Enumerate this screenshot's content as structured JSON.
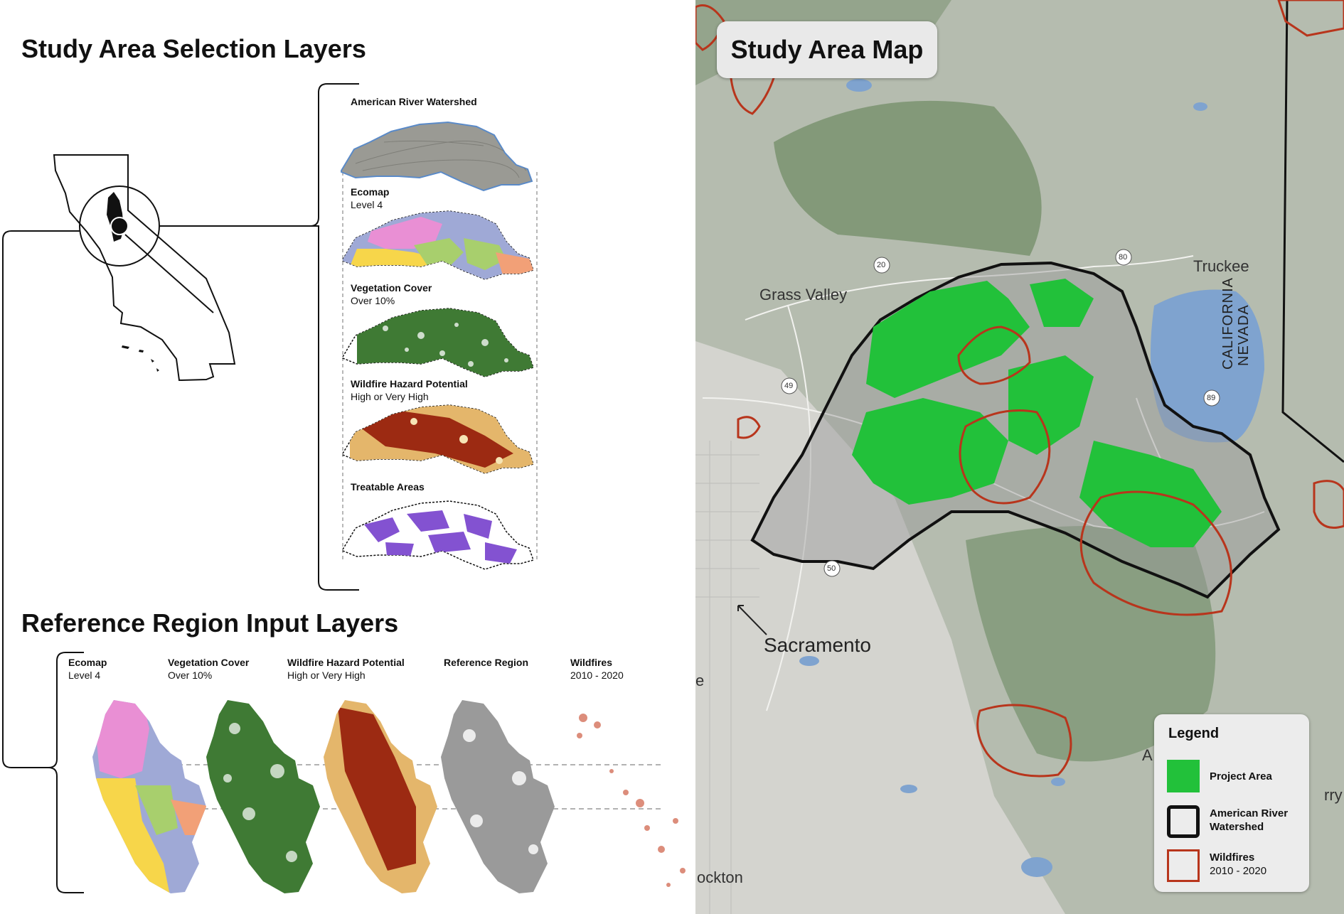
{
  "left_panel": {
    "study_area_title": "Study Area Selection Layers",
    "reference_title": "Reference Region Input Layers",
    "study_layers": [
      {
        "title": "American River Watershed",
        "subtitle": ""
      },
      {
        "title": "Ecomap",
        "subtitle": "Level 4"
      },
      {
        "title": "Vegetation Cover",
        "subtitle": "Over 10%"
      },
      {
        "title": "Wildfire Hazard Potential",
        "subtitle": "High or Very High"
      },
      {
        "title": "Treatable Areas",
        "subtitle": ""
      }
    ],
    "reference_layers": [
      {
        "title": "Ecomap",
        "subtitle": "Level 4"
      },
      {
        "title": "Vegetation Cover",
        "subtitle": "Over 10%"
      },
      {
        "title": "Wildfire Hazard Potential",
        "subtitle": "High or Very High"
      },
      {
        "title": "Reference Region",
        "subtitle": ""
      },
      {
        "title": "Wildfires",
        "subtitle": "2010 - 2020"
      }
    ]
  },
  "map": {
    "title": "Study Area Map",
    "places": [
      "Grass Valley",
      "Truckee",
      "Sacramento",
      "ockton",
      "e",
      "A",
      "rry"
    ],
    "states": [
      "CALIFORNIA",
      "NEVADA"
    ],
    "highways": [
      "20",
      "80",
      "49",
      "89",
      "50"
    ],
    "legend": {
      "title": "Legend",
      "items": [
        {
          "label": "Project Area",
          "sub": "",
          "color": "#22c13a",
          "style": "fill"
        },
        {
          "label": "American River",
          "sub": "Watershed",
          "color": "#111111",
          "style": "outline-thick"
        },
        {
          "label": "Wildfires",
          "sub": "2010 - 2020",
          "color": "#b8351c",
          "style": "outline"
        }
      ]
    }
  },
  "colors": {
    "project_area": "#22c13a",
    "wildfire": "#b8351c",
    "watershed_outline": "#111111",
    "water": "#7fa3cf",
    "vegetation": "#3f7a34",
    "ecomap_pink": "#e98fd4",
    "ecomap_blue": "#9fa9d6",
    "ecomap_yellow": "#f7d64a",
    "ecomap_green": "#a8cf6d",
    "ecomap_orange": "#f2a077",
    "hazard_dark": "#9c2a12",
    "hazard_light": "#e4b66b",
    "treatable": "#8352d1",
    "reference_gray": "#9a9a9a"
  }
}
